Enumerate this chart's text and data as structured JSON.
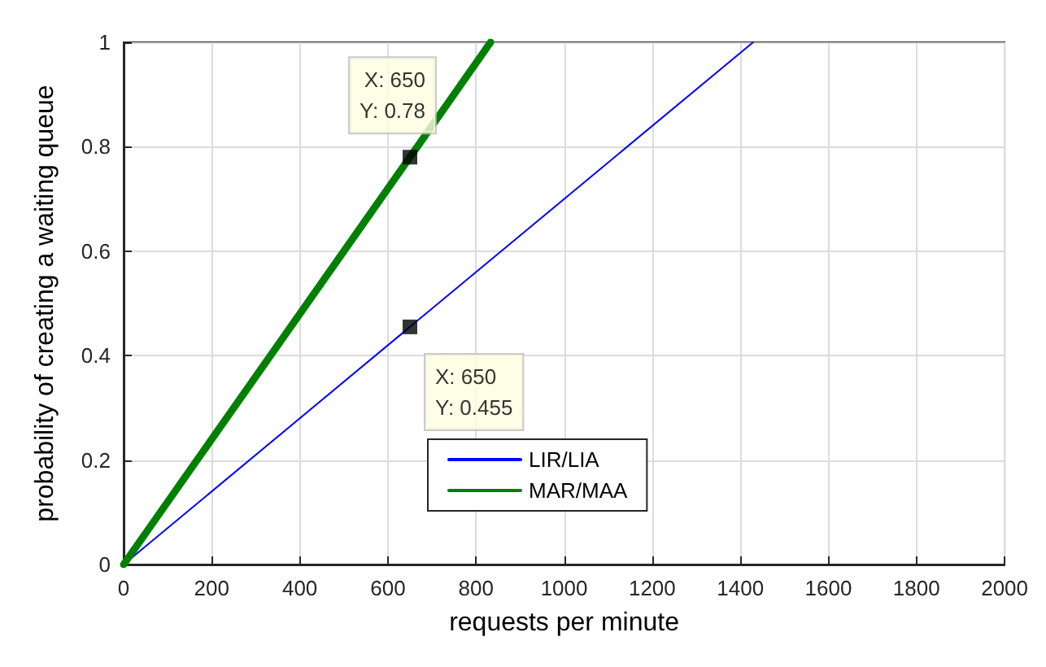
{
  "chart_data": {
    "type": "line",
    "xlabel": "requests per minute",
    "ylabel": "probability of creating a waiting queue",
    "series": [
      {
        "name": "LIR/LIA",
        "color": "#0000ff",
        "x": [
          0,
          650,
          1429
        ],
        "values": [
          0,
          0.455,
          1
        ]
      },
      {
        "name": "MAR/MAA",
        "color": "#008000",
        "x": [
          0,
          650,
          833
        ],
        "values": [
          0,
          0.78,
          1
        ]
      }
    ],
    "annotations": [
      {
        "text": "X: 650\nY: 0.78",
        "x": 650,
        "y": 0.78
      },
      {
        "text": "X: 650\nY: 0.455",
        "x": 650,
        "y": 0.455
      }
    ],
    "xlim": [
      0,
      2000
    ],
    "xticks": [
      0,
      200,
      400,
      600,
      800,
      1000,
      1200,
      1400,
      1600,
      1800,
      2000
    ],
    "ylim": [
      0,
      1
    ],
    "yticks": [
      0,
      0.2,
      0.4,
      0.6,
      0.8,
      1
    ],
    "grid": true,
    "legend": "bottom",
    "marker": "none",
    "line_style": "solid"
  }
}
